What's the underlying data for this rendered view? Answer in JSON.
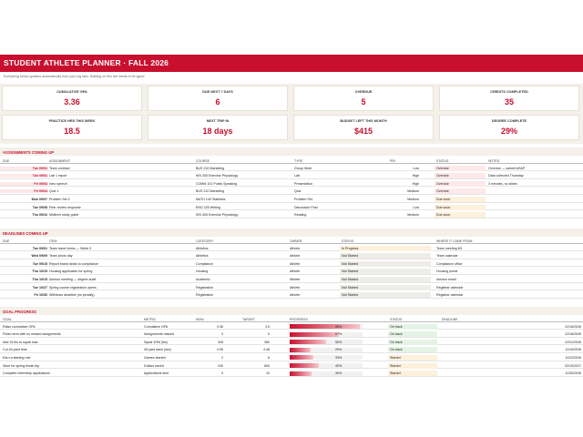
{
  "title": "STUDENT ATHLETE PLANNER  ·  FALL 2026",
  "subtitle": "Everything below updates automatically from your log tabs. Nothing on this tab needs to be typed.",
  "kpis": [
    {
      "label": "CUMULATIVE GPA",
      "value": "3.36"
    },
    {
      "label": "DUE NEXT 7 DAYS",
      "value": "6"
    },
    {
      "label": "OVERDUE",
      "value": "5"
    },
    {
      "label": "CREDITS COMPLETED",
      "value": "35"
    },
    {
      "label": "PRACTICE HRS THIS WEEK",
      "value": "18.5"
    },
    {
      "label": "NEXT TRIP IN",
      "value": "18 days"
    },
    {
      "label": "BUDGET LEFT THIS MONTH",
      "value": "$415"
    },
    {
      "label": "DEGREE COMPLETE",
      "value": "29%"
    }
  ],
  "assignments": {
    "section": "ASSIGNMENTS COMING UP",
    "headers": [
      "DUE",
      "ASSIGNMENT",
      "COURSE",
      "TYPE",
      "PRI",
      "STATUS",
      "NOTES"
    ],
    "rows": [
      {
        "due": "Tue 09/01",
        "name": "Team contract",
        "course": "BUS 210 Marketing",
        "type": "Group Work",
        "pri": "Low",
        "status": "Overdue",
        "notes": "Overdue — submit ASAP"
      },
      {
        "due": "Tue 09/01",
        "name": "Lab 1 report",
        "course": "KIN 305 Exercise Physiology",
        "type": "Lab",
        "pri": "High",
        "status": "Overdue",
        "notes": "Data collected Thursday"
      },
      {
        "due": "Fri 09/04",
        "name": "Intro speech",
        "course": "COMM 101 Public Speaking",
        "type": "Presentation",
        "pri": "High",
        "status": "Overdue",
        "notes": "3 minutes, no slides"
      },
      {
        "due": "Fri 09/04",
        "name": "Quiz 1",
        "course": "BUS 210 Marketing",
        "type": "Quiz",
        "pri": "Medium",
        "status": "Overdue",
        "notes": ""
      },
      {
        "due": "Mon 09/07",
        "name": "Problem Set 2",
        "course": "MATH 140 Statistics",
        "type": "Problem Set",
        "pri": "Medium",
        "status": "Due soon",
        "notes": ""
      },
      {
        "due": "Tue 09/08",
        "name": "Peer review response",
        "course": "ENG 220 Writing",
        "type": "Discussion Post",
        "pri": "Low",
        "status": "Due soon",
        "notes": ""
      },
      {
        "due": "Thu 09/10",
        "name": "Midterm study guide",
        "course": "KIN 305 Exercise Physiology",
        "type": "Reading",
        "pri": "Medium",
        "status": "Due soon",
        "notes": ""
      }
    ]
  },
  "deadlines": {
    "section": "DEADLINES COMING UP",
    "headers": [
      "DUE",
      "ITEM",
      "CATEGORY",
      "OWNER",
      "STATUS",
      "WHERE IT CAME FROM"
    ],
    "rows": [
      {
        "due": "Tue 09/01",
        "item": "Team travel forms — Week 3",
        "category": "Athletics",
        "owner": "Athlete",
        "status": "In Progress",
        "source": "Team meeting 8/1"
      },
      {
        "due": "Wed 09/09",
        "item": "Team photo day",
        "category": "Athletics",
        "owner": "Athlete",
        "status": "Not Started",
        "source": "Team calendar"
      },
      {
        "due": "Tue 09/15",
        "item": "Report brand deals to compliance",
        "category": "Compliance",
        "owner": "Athlete",
        "status": "Not Started",
        "source": "Compliance office"
      },
      {
        "due": "Thu 10/15",
        "item": "Housing application for spring",
        "category": "Housing",
        "owner": "Athlete",
        "status": "Not Started",
        "source": "Housing portal"
      },
      {
        "due": "Thu 10/15",
        "item": "Advisor meeting — degree audit",
        "category": "Academic",
        "owner": "Athlete",
        "status": "Not Started",
        "source": "Advisor email"
      },
      {
        "due": "Tue 10/27",
        "item": "Spring course registration opens",
        "category": "Registration",
        "owner": "Athlete",
        "status": "Not Started",
        "source": "Registrar calendar"
      },
      {
        "due": "Fri 10/30",
        "item": "Withdraw deadline (no penalty)",
        "category": "Registration",
        "owner": "Athlete",
        "status": "Not Started",
        "source": "Registrar calendar"
      }
    ]
  },
  "goals": {
    "section": "GOAL PROGRESS",
    "headers": [
      "GOAL",
      "METRIC",
      "NOW",
      "TARGET",
      "PROGRESS",
      "STATUS",
      "DEADLINE"
    ],
    "rows": [
      {
        "goal": "Raise cumulative GPA",
        "metric": "Cumulative GPA",
        "now": "3.36",
        "target": "3.5",
        "progress": 0.96,
        "pct": "96%",
        "status": "On track",
        "deadline": "12/18/2026"
      },
      {
        "goal": "Finish term with no missed assignments",
        "metric": "Assignments missed",
        "now": "3",
        "target": "0",
        "progress": 0.67,
        "pct": "67%",
        "status": "On track",
        "deadline": "12/18/2026"
      },
      {
        "goal": "Add 15 lbs to squat max",
        "metric": "Squat 1RM (lbs)",
        "now": "345",
        "target": "360",
        "progress": 0.5,
        "pct": "50%",
        "status": "On track",
        "deadline": "12/01/2026"
      },
      {
        "goal": "Cut 40-yard time",
        "metric": "40-yard dash (sec)",
        "now": "4.55",
        "target": "4.48",
        "progress": 0.29,
        "pct": "29%",
        "status": "On track",
        "deadline": "11/15/2026"
      },
      {
        "goal": "Earn a starting role",
        "metric": "Games started",
        "now": "2",
        "target": "6",
        "progress": 0.33,
        "pct": "33%",
        "status": "Started",
        "deadline": "11/22/2026"
      },
      {
        "goal": "Save for spring break trip",
        "metric": "Dollars saved",
        "now": "240",
        "target": "600",
        "progress": 0.4,
        "pct": "40%",
        "status": "Started",
        "deadline": "02/15/2027"
      },
      {
        "goal": "Complete internship applications",
        "metric": "Applications sent",
        "now": "3",
        "target": "10",
        "progress": 0.3,
        "pct": "30%",
        "status": "Started",
        "deadline": "11/30/2026"
      }
    ]
  },
  "colors": {
    "accent": "#c8102e",
    "band": "#f4f1ea",
    "on_track": "#2e8b3a",
    "warning": "#d98a00"
  }
}
